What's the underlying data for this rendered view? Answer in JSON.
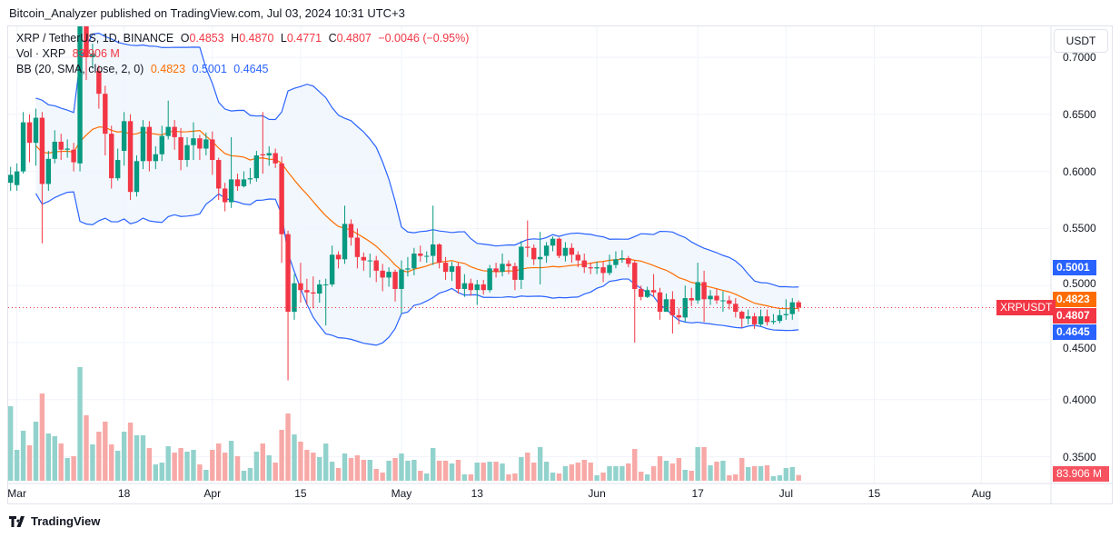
{
  "publish_line": "Bitcoin_Analyzer published on TradingView.com, Jul 03, 2024 10:31 UTC+3",
  "brand": "TradingView",
  "currency_button": "USDT",
  "legend": {
    "symbol": "XRP / TetherUS, 1D, BINANCE",
    "o_label": "O",
    "o": "0.4853",
    "h_label": "H",
    "h": "0.4870",
    "l_label": "L",
    "l": "0.4771",
    "c_label": "C",
    "c": "0.4807",
    "change": "−0.0046 (−0.95%)",
    "vol_label": "Vol · XRP",
    "vol": "83.906 M",
    "bb_label": "BB (20, SMA, close, 2, 0)",
    "bb_basis": "0.4823",
    "bb_upper": "0.5001",
    "bb_lower": "0.4645"
  },
  "price_tags": [
    {
      "text": "0.5001",
      "value": 0.5001,
      "color": "#2962ff"
    },
    {
      "text": "0.4823",
      "value": 0.4823,
      "color": "#ff6d00"
    },
    {
      "text": "0.4807",
      "value": 0.4807,
      "color": "#f23645"
    },
    {
      "text": "0.4645",
      "value": 0.4645,
      "color": "#2962ff"
    }
  ],
  "symbol_tag": "XRPUSDT",
  "volume_tag": "83.906 M",
  "colors": {
    "up": "#089981",
    "down": "#f23645",
    "up_volume": "#92d2cc",
    "down_volume": "#f7a9a7",
    "bb_band": "#2962ff",
    "bb_basis": "#ff6d00",
    "bb_fill": "#eef5fd"
  },
  "chart_data": {
    "type": "candlestick",
    "indicator": "Bollinger Bands (20, SMA, close, 2)",
    "ylim": [
      0.33,
      0.72
    ],
    "grid": true,
    "y_ticks": [
      "0.7000",
      "0.6500",
      "0.6000",
      "0.5500",
      "0.5000",
      "0.4500",
      "0.4000",
      "0.3500"
    ],
    "x_ticks": [
      {
        "label": "Mar",
        "date": "2024-03-01"
      },
      {
        "label": "18",
        "date": "2024-03-18"
      },
      {
        "label": "Apr",
        "date": "2024-04-01"
      },
      {
        "label": "15",
        "date": "2024-04-15"
      },
      {
        "label": "May",
        "date": "2024-05-01"
      },
      {
        "label": "13",
        "date": "2024-05-13"
      },
      {
        "label": "Jun",
        "date": "2024-06-01"
      },
      {
        "label": "17",
        "date": "2024-06-17"
      },
      {
        "label": "Jul",
        "date": "2024-07-01"
      },
      {
        "label": "15",
        "date": "2024-07-15"
      },
      {
        "label": "Aug",
        "date": "2024-08-01"
      }
    ],
    "first_candle_date": "2024-02-29",
    "open": [
      0.59,
      0.588,
      0.6,
      0.643,
      0.625,
      0.647,
      0.589,
      0.611,
      0.626,
      0.619,
      0.619,
      0.607,
      0.73,
      0.7,
      0.688,
      0.668,
      0.633,
      0.594,
      0.618,
      0.644,
      0.582,
      0.609,
      0.639,
      0.609,
      0.615,
      0.631,
      0.639,
      0.63,
      0.61,
      0.623,
      0.629,
      0.62,
      0.628,
      0.61,
      0.585,
      0.573,
      0.593,
      0.587,
      0.593,
      0.594,
      0.615,
      0.614,
      0.616,
      0.607,
      0.545,
      0.477,
      0.502,
      0.496,
      0.494,
      0.493,
      0.501,
      0.501,
      0.527,
      0.523,
      0.554,
      0.542,
      0.525,
      0.522,
      0.522,
      0.513,
      0.507,
      0.512,
      0.497,
      0.514,
      0.515,
      0.528,
      0.526,
      0.526,
      0.536,
      0.52,
      0.512,
      0.517,
      0.497,
      0.502,
      0.496,
      0.501,
      0.496,
      0.515,
      0.512,
      0.519,
      0.517,
      0.505,
      0.534,
      0.533,
      0.523,
      0.526,
      0.535,
      0.541,
      0.526,
      0.533,
      0.527,
      0.522,
      0.516,
      0.515,
      0.516,
      0.511,
      0.518,
      0.523,
      0.524,
      0.52,
      0.497,
      0.49,
      0.496,
      0.494,
      0.477,
      0.488,
      0.474,
      0.472,
      0.489,
      0.487,
      0.503,
      0.488,
      0.491,
      0.487,
      0.487,
      0.484,
      0.477,
      0.471,
      0.473,
      0.466,
      0.473,
      0.468,
      0.469,
      0.474,
      0.475,
      0.4853
    ],
    "high": [
      0.604,
      0.607,
      0.652,
      0.65,
      0.655,
      0.652,
      0.618,
      0.636,
      0.633,
      0.628,
      0.625,
      0.74,
      0.735,
      0.712,
      0.693,
      0.675,
      0.64,
      0.62,
      0.652,
      0.65,
      0.614,
      0.645,
      0.644,
      0.622,
      0.64,
      0.662,
      0.645,
      0.638,
      0.63,
      0.643,
      0.632,
      0.634,
      0.635,
      0.612,
      0.59,
      0.63,
      0.598,
      0.6,
      0.603,
      0.618,
      0.652,
      0.622,
      0.62,
      0.613,
      0.548,
      0.51,
      0.52,
      0.506,
      0.508,
      0.505,
      0.506,
      0.535,
      0.53,
      0.57,
      0.558,
      0.55,
      0.529,
      0.528,
      0.526,
      0.519,
      0.516,
      0.514,
      0.522,
      0.525,
      0.533,
      0.535,
      0.53,
      0.57,
      0.537,
      0.525,
      0.521,
      0.52,
      0.51,
      0.506,
      0.505,
      0.505,
      0.518,
      0.52,
      0.528,
      0.522,
      0.52,
      0.539,
      0.557,
      0.536,
      0.547,
      0.538,
      0.543,
      0.542,
      0.538,
      0.537,
      0.53,
      0.528,
      0.52,
      0.521,
      0.521,
      0.527,
      0.53,
      0.531,
      0.526,
      0.522,
      0.5,
      0.499,
      0.51,
      0.498,
      0.493,
      0.495,
      0.48,
      0.5,
      0.498,
      0.52,
      0.513,
      0.496,
      0.497,
      0.495,
      0.491,
      0.489,
      0.478,
      0.479,
      0.476,
      0.479,
      0.479,
      0.475,
      0.479,
      0.488,
      0.489,
      0.487
    ],
    "low": [
      0.583,
      0.583,
      0.598,
      0.608,
      0.605,
      0.537,
      0.583,
      0.607,
      0.61,
      0.612,
      0.6,
      0.6,
      0.68,
      0.69,
      0.655,
      0.614,
      0.585,
      0.592,
      0.605,
      0.575,
      0.578,
      0.602,
      0.6,
      0.602,
      0.609,
      0.628,
      0.619,
      0.601,
      0.604,
      0.61,
      0.61,
      0.614,
      0.597,
      0.575,
      0.565,
      0.568,
      0.583,
      0.586,
      0.589,
      0.591,
      0.598,
      0.605,
      0.603,
      0.52,
      0.417,
      0.47,
      0.485,
      0.483,
      0.48,
      0.485,
      0.465,
      0.499,
      0.515,
      0.519,
      0.535,
      0.515,
      0.513,
      0.507,
      0.503,
      0.495,
      0.499,
      0.486,
      0.475,
      0.508,
      0.509,
      0.521,
      0.52,
      0.518,
      0.515,
      0.505,
      0.504,
      0.493,
      0.49,
      0.491,
      0.483,
      0.492,
      0.494,
      0.507,
      0.508,
      0.51,
      0.496,
      0.497,
      0.525,
      0.518,
      0.501,
      0.52,
      0.53,
      0.524,
      0.521,
      0.52,
      0.516,
      0.511,
      0.51,
      0.51,
      0.503,
      0.509,
      0.515,
      0.52,
      0.516,
      0.45,
      0.487,
      0.489,
      0.49,
      0.47,
      0.48,
      0.458,
      0.466,
      0.468,
      0.482,
      0.484,
      0.468,
      0.483,
      0.484,
      0.477,
      0.479,
      0.472,
      0.463,
      0.466,
      0.462,
      0.464,
      0.465,
      0.466,
      0.467,
      0.47,
      0.47,
      0.4771
    ],
    "close": [
      0.597,
      0.6,
      0.643,
      0.625,
      0.647,
      0.589,
      0.611,
      0.626,
      0.619,
      0.62,
      0.608,
      0.728,
      0.7,
      0.703,
      0.668,
      0.633,
      0.594,
      0.61,
      0.644,
      0.582,
      0.609,
      0.639,
      0.609,
      0.615,
      0.631,
      0.639,
      0.63,
      0.61,
      0.623,
      0.629,
      0.62,
      0.628,
      0.61,
      0.585,
      0.573,
      0.593,
      0.587,
      0.593,
      0.594,
      0.614,
      0.614,
      0.616,
      0.607,
      0.545,
      0.477,
      0.502,
      0.496,
      0.494,
      0.493,
      0.501,
      0.501,
      0.527,
      0.523,
      0.554,
      0.542,
      0.525,
      0.522,
      0.522,
      0.513,
      0.507,
      0.512,
      0.497,
      0.514,
      0.515,
      0.528,
      0.526,
      0.526,
      0.536,
      0.52,
      0.512,
      0.517,
      0.497,
      0.502,
      0.496,
      0.501,
      0.496,
      0.515,
      0.512,
      0.519,
      0.517,
      0.505,
      0.534,
      0.533,
      0.523,
      0.525,
      0.535,
      0.541,
      0.526,
      0.533,
      0.527,
      0.522,
      0.516,
      0.515,
      0.516,
      0.511,
      0.518,
      0.523,
      0.524,
      0.519,
      0.497,
      0.49,
      0.496,
      0.494,
      0.477,
      0.488,
      0.474,
      0.472,
      0.489,
      0.487,
      0.503,
      0.488,
      0.491,
      0.487,
      0.487,
      0.484,
      0.477,
      0.471,
      0.473,
      0.466,
      0.473,
      0.468,
      0.469,
      0.474,
      0.475,
      0.4853,
      0.4807
    ],
    "volume_millions": [
      1090,
      452,
      732,
      519,
      865,
      1277,
      692,
      652,
      545,
      333,
      359,
      1663,
      958,
      532,
      718,
      865,
      532,
      439,
      718,
      851,
      665,
      665,
      479,
      239,
      266,
      505,
      412,
      479,
      426,
      452,
      239,
      160,
      452,
      545,
      412,
      585,
      359,
      146,
      186,
      426,
      545,
      372,
      266,
      745,
      984,
      678,
      572,
      452,
      412,
      346,
      545,
      279,
      186,
      399,
      333,
      372,
      306,
      306,
      173,
      120,
      293,
      333,
      399,
      293,
      306,
      146,
      106,
      479,
      293,
      293,
      253,
      306,
      93,
      93,
      266,
      266,
      279,
      279,
      253,
      93,
      106,
      346,
      412,
      266,
      492,
      279,
      120,
      106,
      213,
      239,
      266,
      306,
      266,
      80,
      120,
      213,
      213,
      213,
      253,
      465,
      133,
      93,
      213,
      359,
      293,
      253,
      333,
      160,
      146,
      492,
      492,
      226,
      279,
      293,
      80,
      93,
      333,
      200,
      213,
      213,
      226,
      67,
      80,
      186,
      200,
      83.906
    ]
  }
}
